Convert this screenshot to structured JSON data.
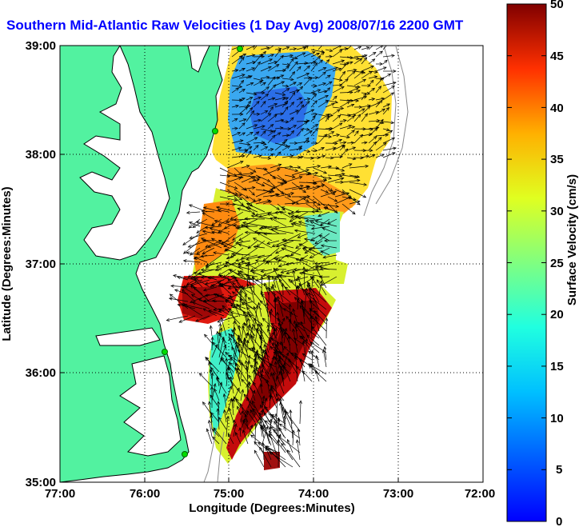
{
  "title": "Southern Mid-Atlantic Raw Velocities (1 Day Avg) 2008/07/16 2200 GMT",
  "axes": {
    "xlabel": "Longitude (Degrees:Minutes)",
    "ylabel": "Latitude (Degrees:Minutes)",
    "x_ticks": [
      "77:00",
      "76:00",
      "75:00",
      "74:00",
      "73:00",
      "72:00"
    ],
    "y_ticks": [
      "39:00",
      "38:00",
      "37:00",
      "36:00",
      "35:00"
    ],
    "xlim": [
      -77,
      -72
    ],
    "ylim": [
      35,
      39
    ],
    "grid": true
  },
  "colorbar": {
    "label": "Surface Velocity (cm/s)",
    "ticks": [
      "50",
      "45",
      "40",
      "35",
      "30",
      "25",
      "20",
      "15",
      "10",
      "5",
      "0"
    ],
    "range": [
      0,
      50
    ],
    "colormap": "jet"
  },
  "colors": {
    "land": "#52f2a0",
    "title": "#0000ff"
  }
}
